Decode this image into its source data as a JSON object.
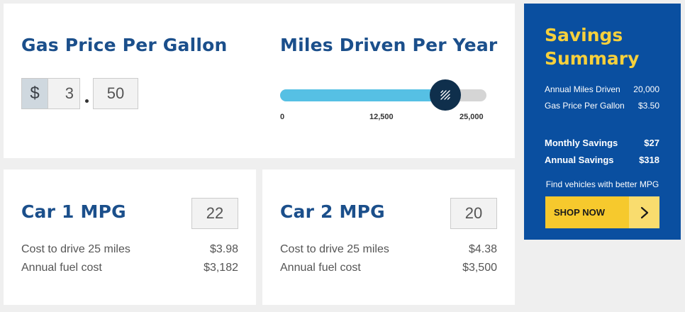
{
  "gas": {
    "heading": "Gas Price Per Gallon",
    "currency_symbol": "$",
    "dollars": "3",
    "cents": "50"
  },
  "miles": {
    "heading": "Miles Driven Per Year",
    "slider_min": 0,
    "slider_max": 25000,
    "slider_value": 20000,
    "tick_labels": [
      "0",
      "12,500",
      "25,000"
    ]
  },
  "car1": {
    "heading": "Car 1 MPG",
    "mpg": "22",
    "cost_25_label": "Cost to drive 25 miles",
    "cost_25_value": "$3.98",
    "annual_label": "Annual fuel cost",
    "annual_value": "$3,182"
  },
  "car2": {
    "heading": "Car 2 MPG",
    "mpg": "20",
    "cost_25_label": "Cost to drive 25 miles",
    "cost_25_value": "$4.38",
    "annual_label": "Annual fuel cost",
    "annual_value": "$3,500"
  },
  "summary": {
    "title_line1": "Savings",
    "title_line2": "Summary",
    "annual_miles_label": "Annual Miles Driven",
    "annual_miles_value": "20,000",
    "gas_price_label": "Gas Price Per Gallon",
    "gas_price_value": "$3.50",
    "monthly_label": "Monthly Savings",
    "monthly_value": "$27",
    "annual_savings_label": "Annual Savings",
    "annual_savings_value": "$318",
    "find_text": "Find vehicles with better MPG",
    "shop_label": "SHOP NOW"
  },
  "colors": {
    "heading_blue": "#1b4f8b",
    "summary_bg": "#0a4fa0",
    "summary_title": "#f6d03c",
    "slider_fill": "#56c0e4",
    "slider_thumb": "#0f2f4c",
    "shop_button": "#f6c92d"
  },
  "icons": {
    "slider_thumb": "hatch-lines-icon",
    "shop_arrow": "chevron-right-icon"
  }
}
